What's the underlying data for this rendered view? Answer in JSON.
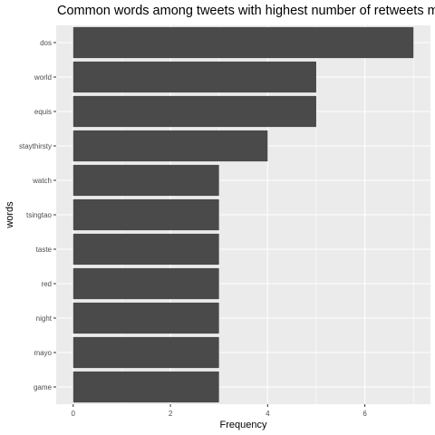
{
  "chart_data": {
    "type": "bar",
    "orientation": "horizontal",
    "title": "Common words among tweets with highest number of retweets monthly",
    "xlabel": "Frequency",
    "ylabel": "words",
    "categories": [
      "dos",
      "world",
      "equis",
      "staythirsty",
      "watch",
      "tsingtao",
      "taste",
      "red",
      "night",
      "mayo",
      "game"
    ],
    "values": [
      7,
      5,
      5,
      4,
      3,
      3,
      3,
      3,
      3,
      3,
      3
    ],
    "xlim": [
      -0.35,
      7.35
    ],
    "x_ticks": [
      0,
      2,
      4,
      6
    ],
    "grid": true,
    "panel_color": "#ebebeb",
    "bar_color": "#4a4a4a",
    "grid_color": "#ffffff"
  }
}
